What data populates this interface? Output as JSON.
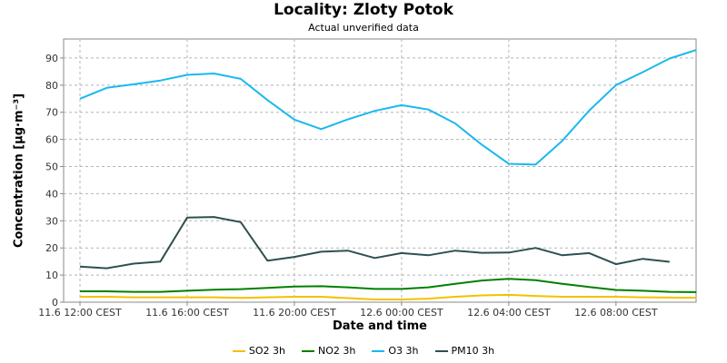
{
  "chart_data": {
    "type": "line",
    "title": "Locality: Zloty Potok",
    "subtitle": "Actual unverified data",
    "xlabel": "Date and time",
    "ylabel": "Concentration [µg·m⁻³]",
    "ylim": [
      0,
      97
    ],
    "y_ticks": [
      0,
      10,
      20,
      30,
      40,
      50,
      60,
      70,
      80,
      90
    ],
    "x_range": [
      0,
      23.6
    ],
    "x_ticks": [
      {
        "x": 0,
        "label": "11.6 12:00 CEST"
      },
      {
        "x": 4,
        "label": "11.6 16:00 CEST"
      },
      {
        "x": 8,
        "label": "11.6 20:00 CEST"
      },
      {
        "x": 12,
        "label": "12.6 00:00 CEST"
      },
      {
        "x": 16,
        "label": "12.6 04:00 CEST"
      },
      {
        "x": 20,
        "label": "12.6 08:00 CEST"
      }
    ],
    "x_unit": "hours since 11.6 12:00 CEST",
    "grid": true,
    "legend_position": "bottom",
    "series": [
      {
        "name": "SO2 3h",
        "color": "#f5c000",
        "x": [
          0,
          1,
          2,
          3,
          4,
          5,
          6,
          7,
          8,
          9,
          10,
          11,
          12,
          13,
          14,
          15,
          16,
          17,
          18,
          19,
          20,
          21,
          22,
          23
        ],
        "values": [
          2,
          2,
          1.8,
          1.8,
          1.8,
          1.8,
          1.6,
          1.8,
          2,
          2,
          1.5,
          1,
          1,
          1.3,
          2,
          2.5,
          2.7,
          2.3,
          2,
          2,
          2,
          1.8,
          1.7,
          1.6
        ]
      },
      {
        "name": "NO2 3h",
        "color": "#008000",
        "x": [
          0,
          1,
          2,
          3,
          4,
          5,
          6,
          7,
          8,
          9,
          10,
          11,
          12,
          13,
          14,
          15,
          16,
          17,
          18,
          19,
          20,
          21,
          22,
          23
        ],
        "values": [
          4,
          4,
          3.8,
          3.8,
          4.2,
          4.6,
          4.8,
          5.3,
          5.8,
          5.9,
          5.5,
          4.9,
          4.9,
          5.5,
          6.8,
          8,
          8.6,
          8.1,
          6.8,
          5.6,
          4.5,
          4.2,
          3.8,
          3.7
        ]
      },
      {
        "name": "O3 3h",
        "color": "#1ab8f0",
        "x": [
          0,
          1,
          2,
          3,
          4,
          5,
          6,
          7,
          8,
          9,
          10,
          11,
          12,
          13,
          14,
          15,
          16,
          17,
          18,
          19,
          20,
          21,
          22,
          23
        ],
        "values": [
          75,
          79,
          80.3,
          81.7,
          83.8,
          84.3,
          82.3,
          74.5,
          67.3,
          63.8,
          67.4,
          70.5,
          72.6,
          71,
          65.9,
          58,
          51,
          50.7,
          59.5,
          70.6,
          80,
          84.8,
          89.8,
          93
        ]
      },
      {
        "name": "PM10 3h",
        "color": "#2f4f4f",
        "x": [
          0,
          1,
          2,
          3,
          4,
          5,
          6,
          7,
          8,
          9,
          10,
          11,
          12,
          13,
          14,
          15,
          16,
          17,
          18,
          19,
          20,
          21,
          22
        ],
        "values": [
          13.1,
          12.5,
          14.2,
          15,
          31.2,
          31.4,
          29.5,
          15.3,
          16.7,
          18.6,
          19,
          16.3,
          18.1,
          17.3,
          19,
          18.2,
          18.3,
          20,
          17.3,
          18.1,
          14,
          16,
          14.9
        ]
      }
    ]
  }
}
